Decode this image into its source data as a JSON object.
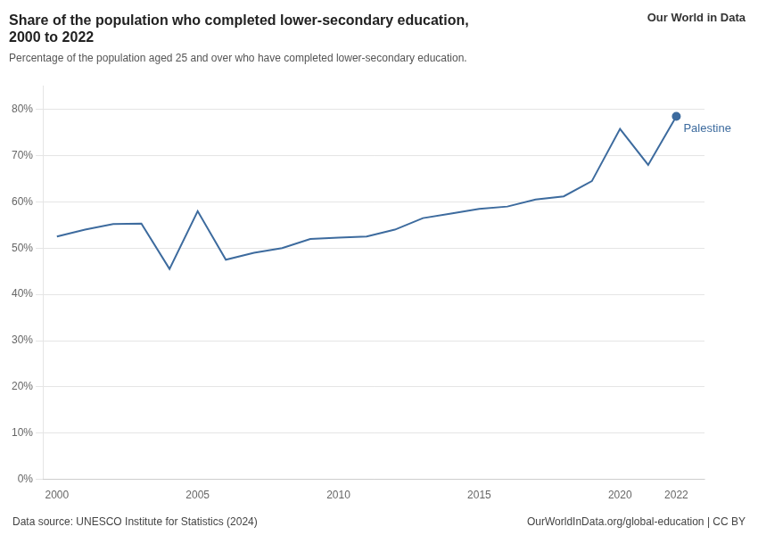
{
  "chart_data": {
    "type": "line",
    "title": [
      "Share of the population who completed lower-secondary education,",
      "2000 to 2022"
    ],
    "subtitle": "Percentage of the population aged 25 and over who have completed lower-secondary education.",
    "annotations": [
      "Data source: UNESCO Institute for Statistics (2024)",
      "OurWorldInData.org/global-education | CC BY",
      "Our World in Data"
    ],
    "x": [
      2000,
      2001,
      2002,
      2003,
      2004,
      2005,
      2006,
      2007,
      2008,
      2009,
      2010,
      2011,
      2012,
      2013,
      2014,
      2015,
      2016,
      2017,
      2018,
      2019,
      2020,
      2021,
      2022
    ],
    "series": [
      {
        "name": "Palestine",
        "color": "#3d6b9e",
        "values": [
          52.5,
          54.0,
          55.2,
          55.3,
          45.5,
          58.0,
          47.5,
          49.0,
          50.0,
          52.0,
          52.3,
          52.5,
          54.0,
          56.5,
          57.5,
          58.5,
          59.0,
          60.5,
          61.2,
          64.5,
          75.8,
          68.0,
          78.5
        ]
      }
    ],
    "xlim": [
      1999.5,
      2023
    ],
    "xticks": [
      2000,
      2005,
      2010,
      2015,
      2020,
      2022
    ],
    "ylim": [
      0,
      85
    ],
    "yticks": [
      {
        "value": 0,
        "label": "0%"
      },
      {
        "value": 10,
        "label": "10%"
      },
      {
        "value": 20,
        "label": "20%"
      },
      {
        "value": 30,
        "label": "30%"
      },
      {
        "value": 40,
        "label": "40%"
      },
      {
        "value": 50,
        "label": "50%"
      },
      {
        "value": 60,
        "label": "60%"
      },
      {
        "value": 70,
        "label": "70%"
      },
      {
        "value": 80,
        "label": "80%"
      }
    ],
    "grid": "y",
    "legend": false
  }
}
